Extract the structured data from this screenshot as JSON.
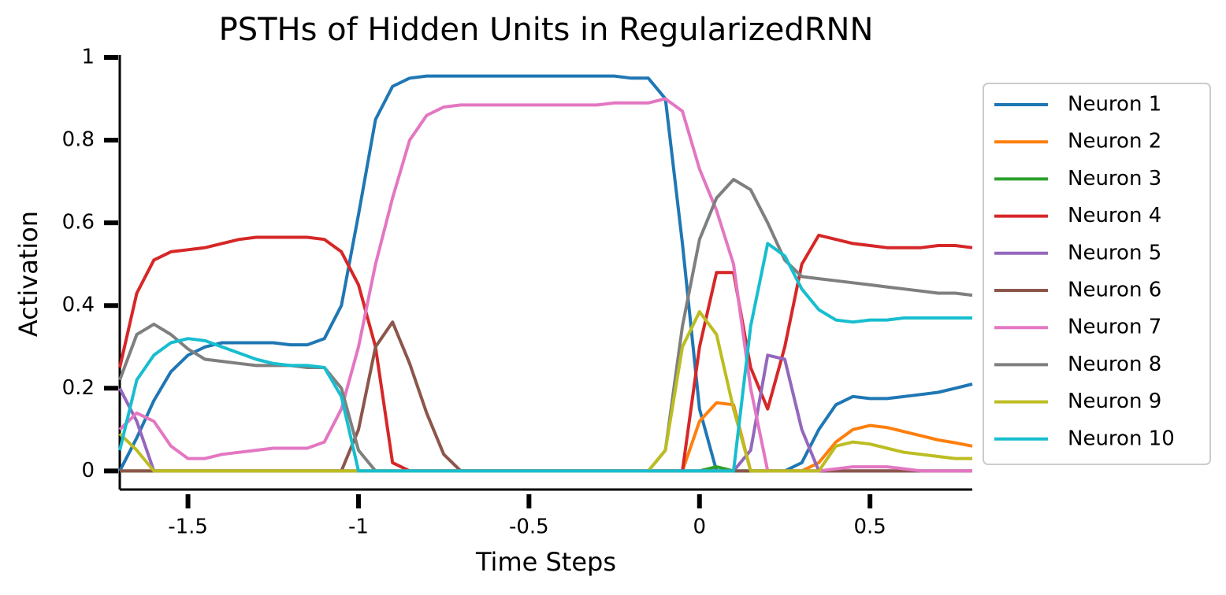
{
  "chart_data": {
    "type": "line",
    "title": "PSTHs of Hidden Units in RegularizedRNN",
    "xlabel": "Time Steps",
    "ylabel": "Activation",
    "xlim": [
      -1.7,
      0.8
    ],
    "ylim": [
      -0.045,
      1.0
    ],
    "xticks": [
      -1.5,
      -1.0,
      -0.5,
      0.0,
      0.5
    ],
    "yticks": [
      0.0,
      0.2,
      0.4,
      0.6,
      0.8,
      1.0
    ],
    "legend": "outside right",
    "x": [
      -1.7,
      -1.65,
      -1.6,
      -1.55,
      -1.5,
      -1.45,
      -1.4,
      -1.35,
      -1.3,
      -1.25,
      -1.2,
      -1.15,
      -1.1,
      -1.05,
      -1.0,
      -0.95,
      -0.9,
      -0.85,
      -0.8,
      -0.75,
      -0.7,
      -0.65,
      -0.6,
      -0.55,
      -0.5,
      -0.45,
      -0.4,
      -0.35,
      -0.3,
      -0.25,
      -0.2,
      -0.15,
      -0.1,
      -0.05,
      0.0,
      0.05,
      0.1,
      0.15,
      0.2,
      0.25,
      0.3,
      0.35,
      0.4,
      0.45,
      0.5,
      0.55,
      0.6,
      0.65,
      0.7,
      0.75,
      0.8
    ],
    "series": [
      {
        "name": "Neuron 1",
        "color": "#1f77b4",
        "values": [
          0.0,
          0.08,
          0.17,
          0.24,
          0.28,
          0.3,
          0.31,
          0.31,
          0.31,
          0.31,
          0.305,
          0.305,
          0.32,
          0.4,
          0.62,
          0.85,
          0.93,
          0.95,
          0.955,
          0.955,
          0.955,
          0.955,
          0.955,
          0.955,
          0.955,
          0.955,
          0.955,
          0.955,
          0.955,
          0.955,
          0.95,
          0.95,
          0.9,
          0.55,
          0.15,
          0.0,
          0.0,
          0.0,
          0.0,
          0.0,
          0.02,
          0.1,
          0.16,
          0.18,
          0.175,
          0.175,
          0.18,
          0.185,
          0.19,
          0.2,
          0.21
        ]
      },
      {
        "name": "Neuron 2",
        "color": "#ff7f0e",
        "values": [
          0,
          0,
          0,
          0,
          0,
          0,
          0,
          0,
          0,
          0,
          0,
          0,
          0,
          0,
          0,
          0,
          0,
          0,
          0,
          0,
          0,
          0,
          0,
          0,
          0,
          0,
          0,
          0,
          0,
          0,
          0,
          0,
          0,
          0,
          0.12,
          0.165,
          0.16,
          0.0,
          0,
          0,
          0,
          0.02,
          0.07,
          0.1,
          0.11,
          0.105,
          0.095,
          0.085,
          0.075,
          0.068,
          0.06
        ]
      },
      {
        "name": "Neuron 3",
        "color": "#2ca02c",
        "values": [
          0,
          0,
          0,
          0,
          0,
          0,
          0,
          0,
          0,
          0,
          0,
          0,
          0,
          0,
          0,
          0,
          0,
          0,
          0,
          0,
          0,
          0,
          0,
          0,
          0,
          0,
          0,
          0,
          0,
          0,
          0,
          0,
          0,
          0,
          0,
          0.01,
          0,
          0,
          0,
          0,
          0,
          0,
          0,
          0,
          0,
          0,
          0,
          0,
          0,
          0,
          0
        ]
      },
      {
        "name": "Neuron 4",
        "color": "#d62728",
        "values": [
          0.25,
          0.43,
          0.51,
          0.53,
          0.535,
          0.54,
          0.55,
          0.56,
          0.565,
          0.565,
          0.565,
          0.565,
          0.56,
          0.53,
          0.45,
          0.3,
          0.02,
          0,
          0,
          0,
          0,
          0,
          0,
          0,
          0,
          0,
          0,
          0,
          0,
          0,
          0,
          0,
          0,
          0,
          0.3,
          0.48,
          0.48,
          0.25,
          0.15,
          0.3,
          0.5,
          0.57,
          0.56,
          0.55,
          0.545,
          0.54,
          0.54,
          0.54,
          0.545,
          0.545,
          0.54
        ]
      },
      {
        "name": "Neuron 5",
        "color": "#9467bd",
        "values": [
          0.2,
          0.12,
          0.0,
          0,
          0,
          0,
          0,
          0,
          0,
          0,
          0,
          0,
          0,
          0,
          0,
          0,
          0,
          0,
          0,
          0,
          0,
          0,
          0,
          0,
          0,
          0,
          0,
          0,
          0,
          0,
          0,
          0,
          0,
          0,
          0,
          0,
          0,
          0.05,
          0.28,
          0.27,
          0.1,
          0,
          0,
          0,
          0,
          0,
          0,
          0,
          0,
          0,
          0
        ]
      },
      {
        "name": "Neuron 6",
        "color": "#8c564b",
        "values": [
          0,
          0,
          0,
          0,
          0,
          0,
          0,
          0,
          0,
          0,
          0,
          0,
          0,
          0,
          0.1,
          0.3,
          0.36,
          0.26,
          0.14,
          0.04,
          0,
          0,
          0,
          0,
          0,
          0,
          0,
          0,
          0,
          0,
          0,
          0,
          0,
          0,
          0,
          0,
          0,
          0,
          0,
          0,
          0,
          0,
          0,
          0,
          0,
          0,
          0,
          0,
          0,
          0,
          0
        ]
      },
      {
        "name": "Neuron 7",
        "color": "#e377c2",
        "values": [
          0.1,
          0.14,
          0.12,
          0.06,
          0.03,
          0.03,
          0.04,
          0.045,
          0.05,
          0.055,
          0.055,
          0.055,
          0.07,
          0.15,
          0.3,
          0.5,
          0.66,
          0.8,
          0.86,
          0.88,
          0.885,
          0.885,
          0.885,
          0.885,
          0.885,
          0.885,
          0.885,
          0.885,
          0.885,
          0.89,
          0.89,
          0.89,
          0.9,
          0.87,
          0.73,
          0.63,
          0.5,
          0.2,
          0.0,
          0,
          0,
          0,
          0.005,
          0.01,
          0.01,
          0.01,
          0.005,
          0.0,
          0,
          0,
          0
        ]
      },
      {
        "name": "Neuron 8",
        "color": "#7f7f7f",
        "values": [
          0.22,
          0.33,
          0.355,
          0.33,
          0.295,
          0.27,
          0.265,
          0.26,
          0.255,
          0.255,
          0.255,
          0.25,
          0.25,
          0.2,
          0.05,
          0,
          0,
          0,
          0,
          0,
          0,
          0,
          0,
          0,
          0,
          0,
          0,
          0,
          0,
          0,
          0,
          0,
          0.05,
          0.35,
          0.56,
          0.66,
          0.705,
          0.68,
          0.6,
          0.51,
          0.47,
          0.465,
          0.46,
          0.455,
          0.45,
          0.445,
          0.44,
          0.435,
          0.43,
          0.43,
          0.425
        ]
      },
      {
        "name": "Neuron 9",
        "color": "#bcbd22",
        "values": [
          0.09,
          0.05,
          0.0,
          0,
          0,
          0,
          0,
          0,
          0,
          0,
          0,
          0,
          0,
          0,
          0,
          0,
          0,
          0,
          0,
          0,
          0,
          0,
          0,
          0,
          0,
          0,
          0,
          0,
          0,
          0,
          0,
          0,
          0.05,
          0.3,
          0.385,
          0.33,
          0.15,
          0.0,
          0,
          0,
          0,
          0,
          0.06,
          0.07,
          0.065,
          0.055,
          0.045,
          0.04,
          0.035,
          0.03,
          0.03
        ]
      },
      {
        "name": "Neuron 10",
        "color": "#17becf",
        "values": [
          0.05,
          0.22,
          0.28,
          0.31,
          0.32,
          0.315,
          0.3,
          0.285,
          0.27,
          0.26,
          0.255,
          0.255,
          0.25,
          0.18,
          0.0,
          0,
          0,
          0,
          0,
          0,
          0,
          0,
          0,
          0,
          0,
          0,
          0,
          0,
          0,
          0,
          0,
          0,
          0,
          0,
          0,
          0,
          0,
          0.35,
          0.55,
          0.52,
          0.44,
          0.39,
          0.365,
          0.36,
          0.365,
          0.365,
          0.37,
          0.37,
          0.37,
          0.37,
          0.37
        ]
      }
    ]
  }
}
